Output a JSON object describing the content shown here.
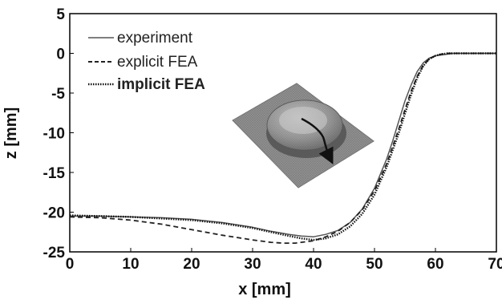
{
  "chart_data": {
    "type": "line",
    "title": "",
    "xlabel": "x [mm]",
    "ylabel": "z [mm]",
    "xlim": [
      0,
      70
    ],
    "ylim": [
      -25,
      5
    ],
    "xticks": [
      "0",
      "10",
      "20",
      "30",
      "40",
      "50",
      "60",
      "70"
    ],
    "yticks": [
      "5",
      "0",
      "-5",
      "-10",
      "-15",
      "-20",
      "-25"
    ],
    "legend_position": "top-left",
    "inset": "3D surface mesh of a domed part on a square plate with an arrow indicating the measured section path",
    "series": [
      {
        "name": "experiment",
        "style": "solid",
        "color": "#555555",
        "x": [
          0,
          5,
          10,
          15,
          20,
          25,
          30,
          33,
          36,
          38,
          40,
          42,
          44,
          46,
          48,
          50,
          52,
          53,
          54,
          55,
          56,
          57,
          58,
          59,
          60,
          61,
          62,
          63,
          64,
          66,
          70
        ],
        "y": [
          -20.5,
          -20.5,
          -20.6,
          -20.7,
          -20.9,
          -21.3,
          -21.9,
          -22.4,
          -22.8,
          -23.0,
          -23.1,
          -22.8,
          -22.3,
          -21.3,
          -19.6,
          -17.0,
          -13.3,
          -11.0,
          -8.5,
          -6.0,
          -4.0,
          -2.3,
          -1.2,
          -0.6,
          -0.3,
          -0.2,
          -0.1,
          0,
          0,
          0,
          0
        ]
      },
      {
        "name": "explicit FEA",
        "style": "dashed",
        "color": "#222222",
        "x": [
          0,
          5,
          10,
          15,
          20,
          25,
          30,
          33,
          35,
          37,
          40,
          42,
          44,
          46,
          48,
          50,
          52,
          54,
          55,
          56,
          57,
          58,
          59,
          60,
          61,
          62,
          63,
          64,
          66,
          70
        ],
        "y": [
          -20.6,
          -20.7,
          -21.0,
          -21.5,
          -22.2,
          -22.9,
          -23.5,
          -23.8,
          -23.9,
          -23.9,
          -23.6,
          -23.1,
          -22.4,
          -21.3,
          -19.7,
          -17.3,
          -13.9,
          -9.5,
          -7.1,
          -4.8,
          -2.9,
          -1.5,
          -0.7,
          -0.3,
          -0.1,
          0,
          0,
          0,
          0,
          0
        ]
      },
      {
        "name": "implicit FEA",
        "style": "dotted",
        "color": "#111111",
        "x": [
          0,
          5,
          10,
          15,
          20,
          25,
          30,
          33,
          36,
          38,
          40,
          42,
          44,
          46,
          48,
          50,
          52,
          54,
          55,
          56,
          57,
          58,
          59,
          60,
          61,
          62,
          63,
          64,
          66,
          70
        ],
        "y": [
          -20.4,
          -20.5,
          -20.6,
          -20.8,
          -21.0,
          -21.4,
          -22.0,
          -22.5,
          -23.0,
          -23.3,
          -23.5,
          -23.3,
          -22.8,
          -21.8,
          -20.2,
          -17.8,
          -14.3,
          -10.0,
          -7.6,
          -5.2,
          -3.1,
          -1.6,
          -0.7,
          -0.3,
          -0.1,
          0,
          0,
          0,
          0,
          0
        ]
      }
    ]
  }
}
